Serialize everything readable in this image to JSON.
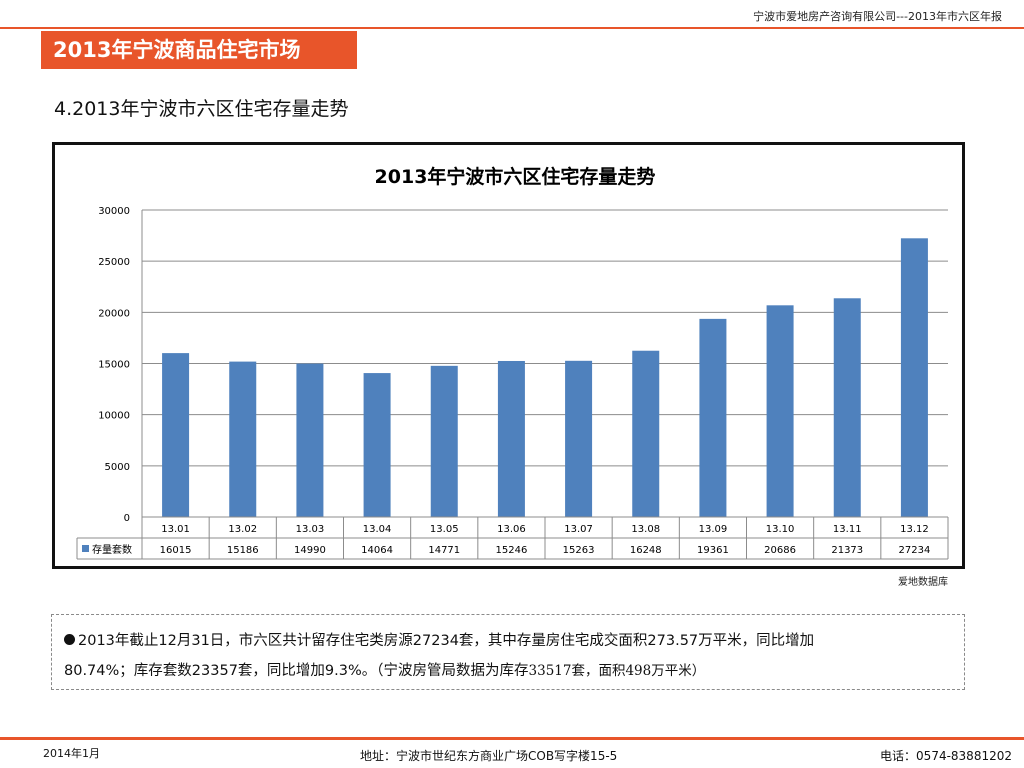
{
  "header": {
    "company_line": "宁波市爱地房产咨询有限公司---2013年市六区年报",
    "banner_title": "2013年宁波商品住宅市场",
    "section_title": "4.2013年宁波市六区住宅存量走势"
  },
  "colors": {
    "accent": "#e8552a",
    "bar": "#4f81bd"
  },
  "chart_data": {
    "type": "bar",
    "title": "2013年宁波市六区住宅存量走势",
    "xlabel": "",
    "ylabel": "",
    "ylim": [
      0,
      30000
    ],
    "yticks": [
      0,
      5000,
      10000,
      15000,
      20000,
      25000,
      30000
    ],
    "grid": true,
    "legend": "bottom-left (data table)",
    "categories": [
      "13.01",
      "13.02",
      "13.03",
      "13.04",
      "13.05",
      "13.06",
      "13.07",
      "13.08",
      "13.09",
      "13.10",
      "13.11",
      "13.12"
    ],
    "series": [
      {
        "name": "存量套数",
        "values": [
          16015,
          15186,
          14990,
          14064,
          14771,
          15246,
          15263,
          16248,
          19361,
          20686,
          21373,
          27234
        ]
      }
    ]
  },
  "source_note": "爱地数据库",
  "summary": {
    "line1": "2013年截止12月31日，市六区共计留存住宅类房源27234套，其中存量房住宅成交面积273.57万平米，同比增加",
    "line2": "80.74%；库存套数23357套，同比增加9.3%。（宁波房管局数据为库存",
    "line2_tail": "33517套，面积498万平米）"
  },
  "footer": {
    "date": "2014年1月",
    "address": "地址：宁波市世纪东方商业广场COB写字楼15-5",
    "phone": "电话：0574-83881202"
  }
}
